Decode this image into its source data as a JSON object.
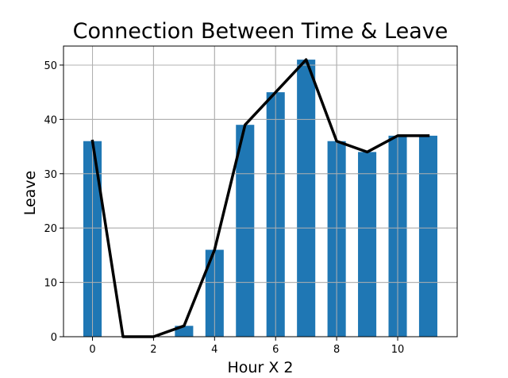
{
  "chart_data": {
    "type": "bar",
    "title": "Connection Between Time & Leave",
    "xlabel": "Hour X 2",
    "ylabel": "Leave",
    "x": [
      0,
      1,
      2,
      3,
      4,
      5,
      6,
      7,
      8,
      9,
      10,
      11
    ],
    "values": [
      36,
      0,
      0,
      2,
      16,
      39,
      45,
      51,
      36,
      34,
      37,
      37
    ],
    "line": {
      "x": [
        0,
        1,
        2,
        3,
        4,
        5,
        6,
        7,
        8,
        9,
        10,
        11
      ],
      "y": [
        36,
        0,
        0,
        2,
        16,
        39,
        45,
        51,
        36,
        34,
        37,
        37
      ]
    },
    "xlim": [
      -0.95,
      11.95
    ],
    "ylim": [
      0,
      53.5
    ],
    "xticks": [
      "0",
      "2",
      "4",
      "6",
      "8",
      "10"
    ],
    "yticks": [
      "0",
      "10",
      "20",
      "30",
      "40",
      "50"
    ],
    "grid": true,
    "bar_color": "#1f77b4",
    "line_color": "#000000",
    "grid_color": "#b0b0b0"
  }
}
